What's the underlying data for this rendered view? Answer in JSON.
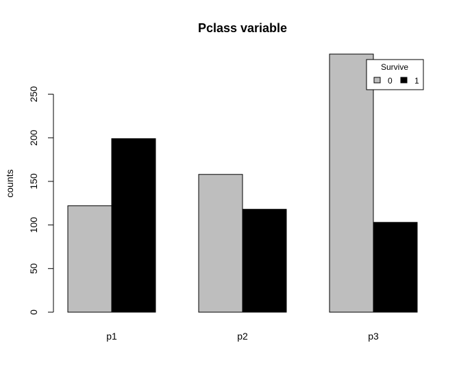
{
  "chart_data": {
    "type": "bar",
    "title": "Pclass variable",
    "xlabel": "",
    "ylabel": "counts",
    "categories": [
      "p1",
      "p2",
      "p3"
    ],
    "series": [
      {
        "name": "0",
        "values": [
          122,
          158,
          296
        ],
        "color": "#bebebe"
      },
      {
        "name": "1",
        "values": [
          199,
          118,
          103
        ],
        "color": "#000000"
      }
    ],
    "yticks": [
      0,
      50,
      100,
      150,
      200,
      250
    ],
    "ylim": [
      0,
      296
    ],
    "grid": false,
    "legend": {
      "title": "Survive",
      "position": "top-right"
    }
  }
}
